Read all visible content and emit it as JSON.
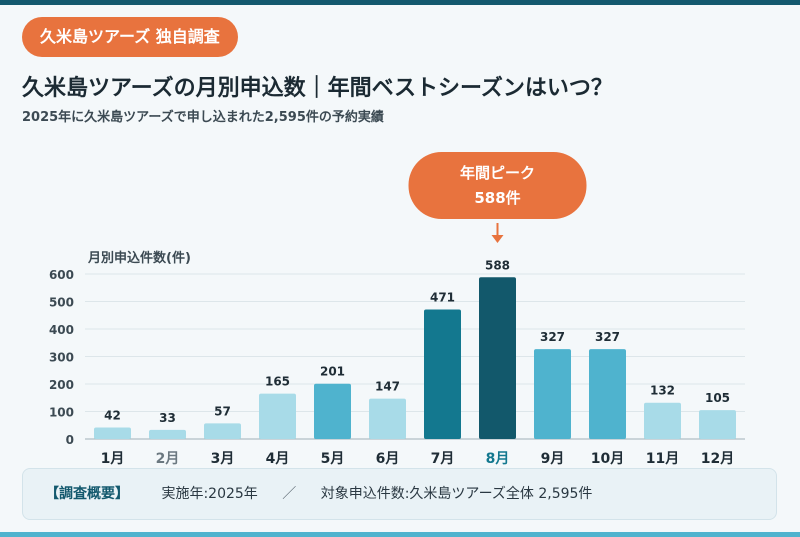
{
  "header": {
    "badge": "久米島ツアーズ 独自調査",
    "title": "久米島ツアーズの月別申込数｜年間ベストシーズンはいつ？",
    "subtitle": "2025年に久米島ツアーズで申し込まれた2,595件の予約実績"
  },
  "colors": {
    "accent": "#e8733e",
    "bar_light": "#a8dbe8",
    "bar_mid": "#4fb3ce",
    "bar_dark": "#13788f",
    "bar_peak": "#12586b",
    "peak_label": "#13788f"
  },
  "chart_data": {
    "type": "bar",
    "ylabel": "月別申込件数(件)",
    "ylim": [
      0,
      600
    ],
    "yticks": [
      0,
      100,
      200,
      300,
      400,
      500,
      600
    ],
    "categories": [
      "1月",
      "2月",
      "3月",
      "4月",
      "5月",
      "6月",
      "7月",
      "8月",
      "9月",
      "10月",
      "11月",
      "12月"
    ],
    "values": [
      42,
      33,
      57,
      165,
      201,
      147,
      471,
      588,
      327,
      327,
      132,
      105
    ],
    "grid": true,
    "callout": {
      "line1": "年間ピーク",
      "line2": "588件",
      "category": "8月"
    }
  },
  "summary": {
    "label": "【調査概要】",
    "item1": "実施年:2025年",
    "separator": "／",
    "item2": "対象申込件数:久米島ツアーズ全体 2,595件"
  }
}
